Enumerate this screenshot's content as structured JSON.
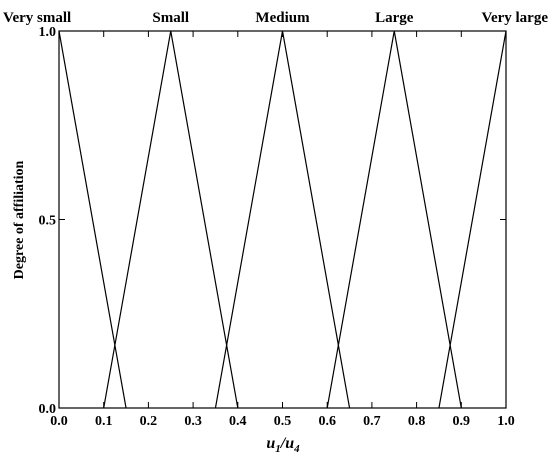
{
  "chart_data": {
    "type": "line",
    "xlabel": {
      "main1": "u",
      "sub1": "1",
      "sep": "/",
      "main2": "u",
      "sub2": "4"
    },
    "ylabel": "Degree of affiliation",
    "xlim": [
      0.0,
      1.0
    ],
    "ylim": [
      0.0,
      1.0
    ],
    "x_ticks": [
      0.0,
      0.1,
      0.2,
      0.3,
      0.4,
      0.5,
      0.6,
      0.7,
      0.8,
      0.9,
      1.0
    ],
    "x_tick_labels": [
      "0.0",
      "0.1",
      "0.2",
      "0.3",
      "0.4",
      "0.5",
      "0.6",
      "0.7",
      "0.8",
      "0.9",
      "1.0"
    ],
    "y_ticks": [
      0.0,
      0.5,
      1.0
    ],
    "y_tick_labels": [
      "0.0",
      "0.5",
      "1.0"
    ],
    "grid": false,
    "line_color": "#000000",
    "series": [
      {
        "name": "Very small",
        "x": [
          0.0,
          0.15
        ],
        "y": [
          1.0,
          0.0
        ]
      },
      {
        "name": "Small",
        "x": [
          0.1,
          0.25,
          0.4
        ],
        "y": [
          0.0,
          1.0,
          0.0
        ]
      },
      {
        "name": "Medium",
        "x": [
          0.35,
          0.5,
          0.65
        ],
        "y": [
          0.0,
          1.0,
          0.0
        ]
      },
      {
        "name": "Large",
        "x": [
          0.6,
          0.75,
          0.9
        ],
        "y": [
          0.0,
          1.0,
          0.0
        ]
      },
      {
        "name": "Very large",
        "x": [
          0.85,
          1.0
        ],
        "y": [
          0.0,
          1.0
        ]
      }
    ]
  }
}
